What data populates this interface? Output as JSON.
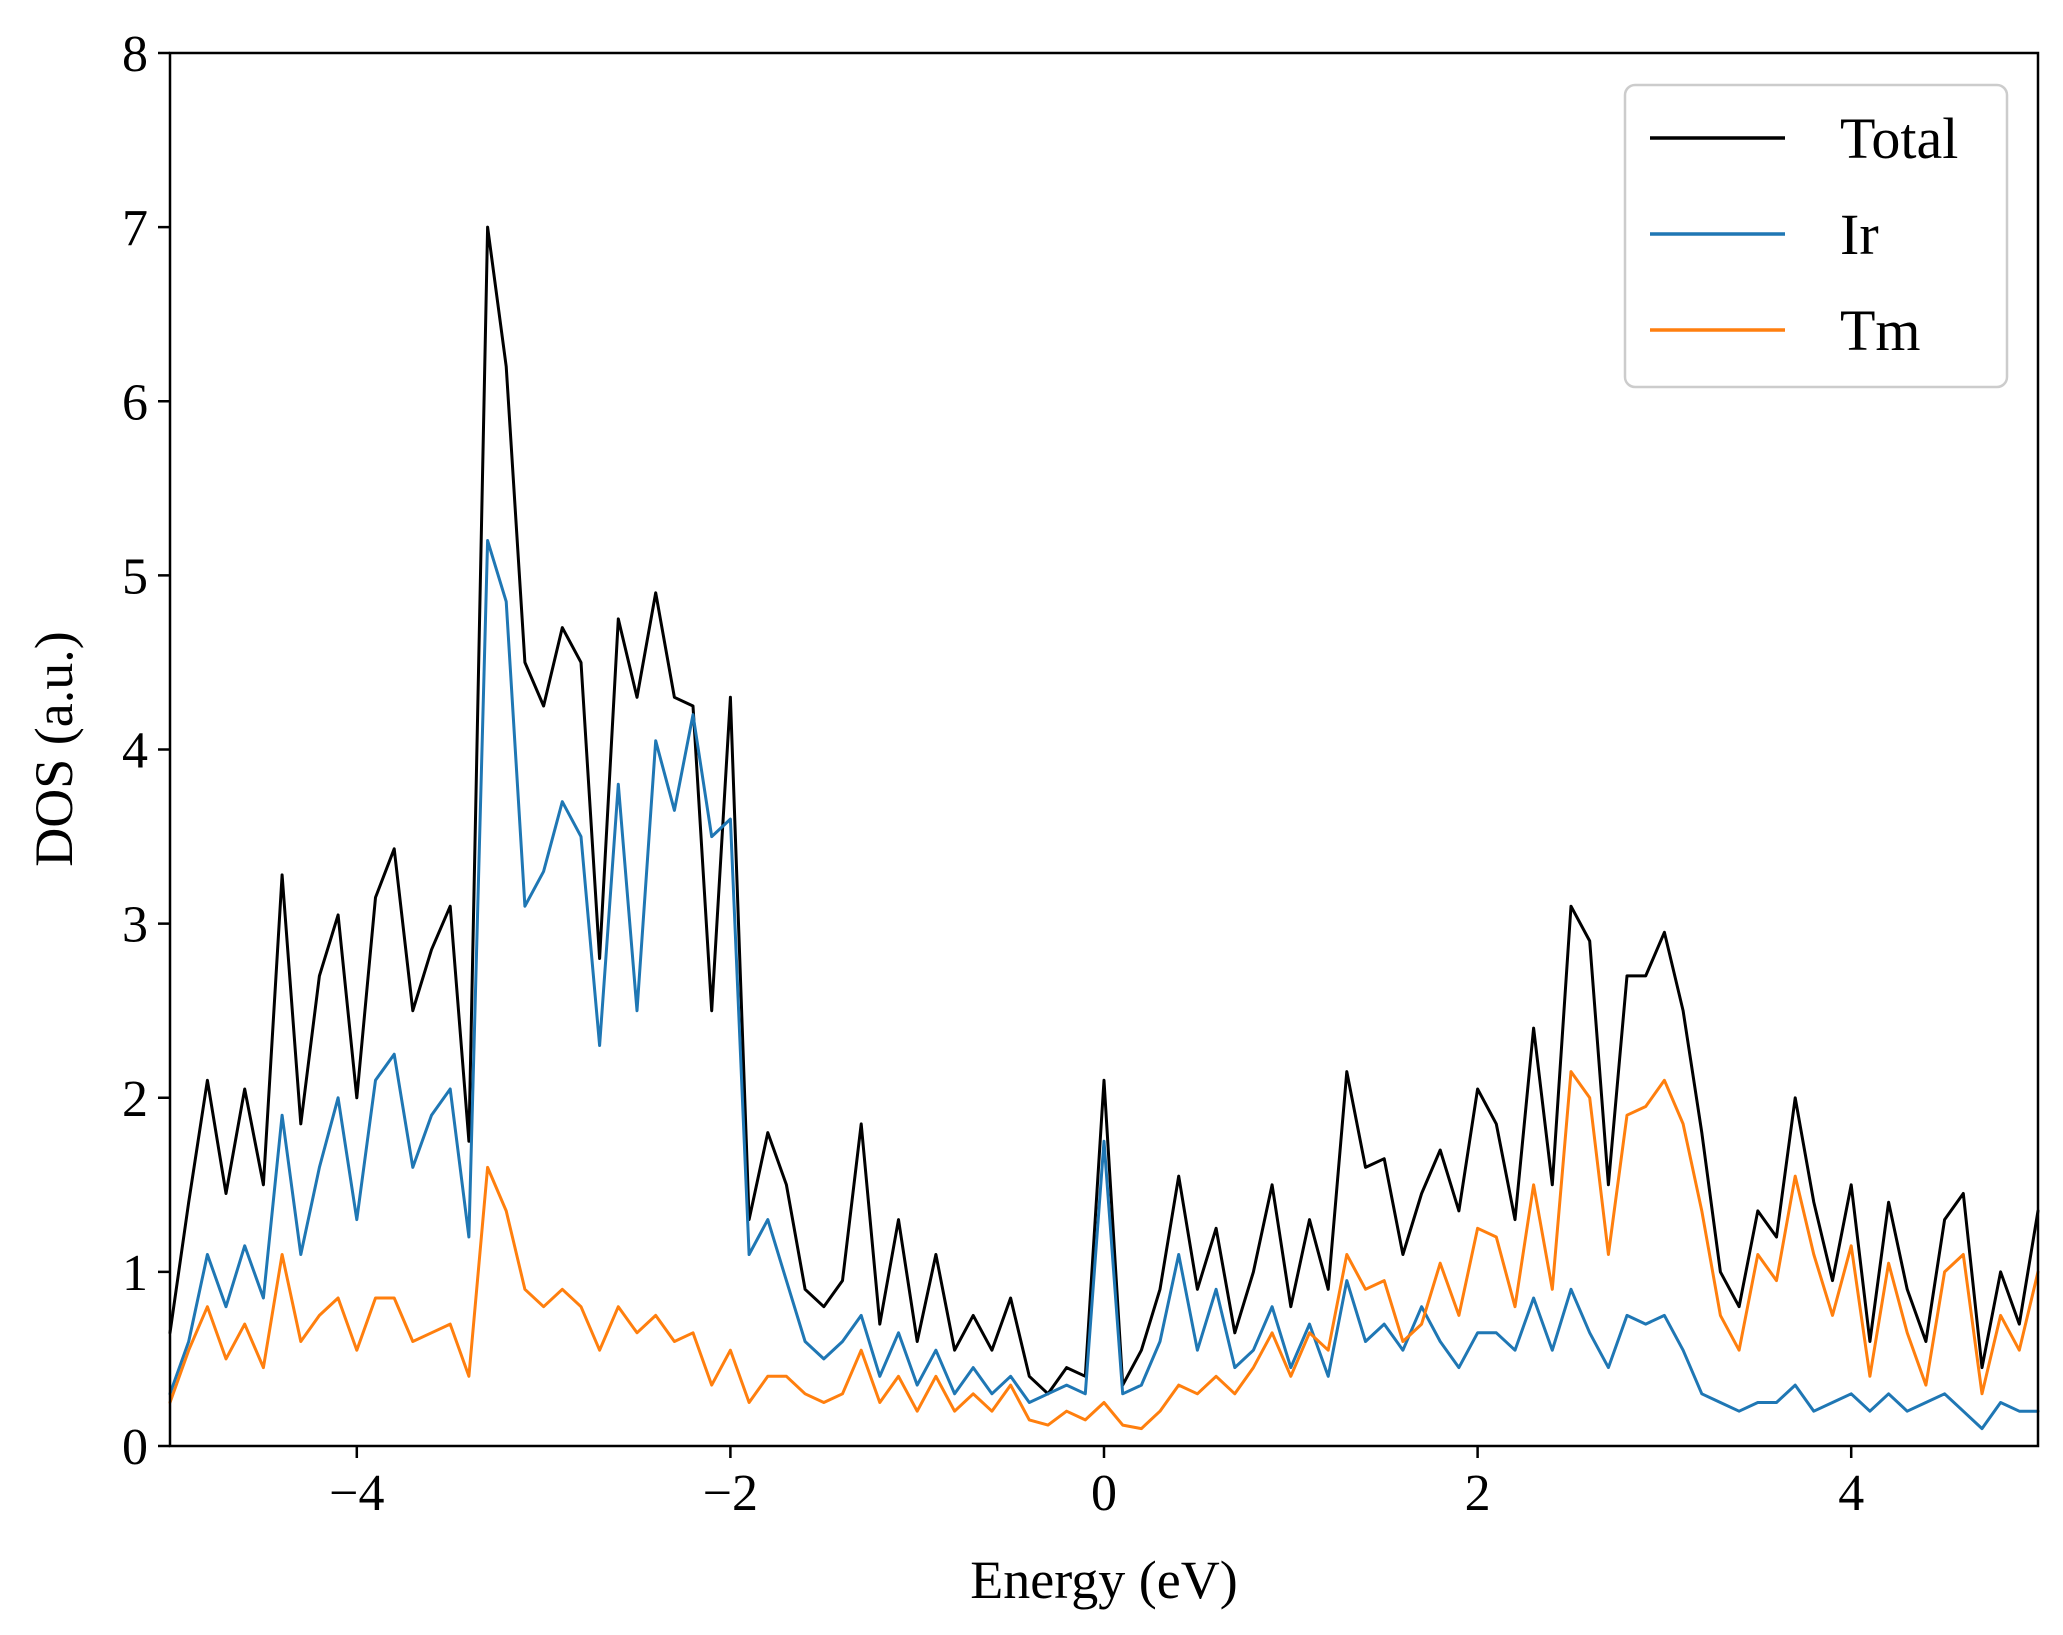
{
  "chart_data": {
    "type": "line",
    "title": "",
    "xlabel": "Energy (eV)",
    "ylabel": "DOS (a.u.)",
    "xlim": [
      -5,
      5
    ],
    "ylim": [
      0,
      8
    ],
    "xticks": [
      -4,
      -2,
      0,
      2,
      4
    ],
    "xtick_labels": [
      "−4",
      "−2",
      "0",
      "2",
      "4"
    ],
    "yticks": [
      0,
      1,
      2,
      3,
      4,
      5,
      6,
      7,
      8
    ],
    "ytick_labels": [
      "0",
      "1",
      "2",
      "3",
      "4",
      "5",
      "6",
      "7",
      "8"
    ],
    "grid": false,
    "legend_position": "top-right",
    "x": [
      -5.0,
      -4.9,
      -4.8,
      -4.7,
      -4.6,
      -4.5,
      -4.4,
      -4.3,
      -4.2,
      -4.1,
      -4.0,
      -3.9,
      -3.8,
      -3.7,
      -3.6,
      -3.5,
      -3.4,
      -3.3,
      -3.2,
      -3.1,
      -3.0,
      -2.9,
      -2.8,
      -2.7,
      -2.6,
      -2.5,
      -2.4,
      -2.3,
      -2.2,
      -2.1,
      -2.0,
      -1.9,
      -1.8,
      -1.7,
      -1.6,
      -1.5,
      -1.4,
      -1.3,
      -1.2,
      -1.1,
      -1.0,
      -0.9,
      -0.8,
      -0.7,
      -0.6,
      -0.5,
      -0.4,
      -0.3,
      -0.2,
      -0.1,
      0.0,
      0.1,
      0.2,
      0.3,
      0.4,
      0.5,
      0.6,
      0.7,
      0.8,
      0.9,
      1.0,
      1.1,
      1.2,
      1.3,
      1.4,
      1.5,
      1.6,
      1.7,
      1.8,
      1.9,
      2.0,
      2.1,
      2.2,
      2.3,
      2.4,
      2.5,
      2.6,
      2.7,
      2.8,
      2.9,
      3.0,
      3.1,
      3.2,
      3.3,
      3.4,
      3.5,
      3.6,
      3.7,
      3.8,
      3.9,
      4.0,
      4.1,
      4.2,
      4.3,
      4.4,
      4.5,
      4.6,
      4.7,
      4.8,
      4.9,
      5.0
    ],
    "series": [
      {
        "name": "Total",
        "color": "#000000",
        "values": [
          0.65,
          1.4,
          2.1,
          1.45,
          2.05,
          1.5,
          3.28,
          1.85,
          2.7,
          3.05,
          2.0,
          3.15,
          3.43,
          2.5,
          2.85,
          3.1,
          1.75,
          7.0,
          6.2,
          4.5,
          4.25,
          4.7,
          4.5,
          2.8,
          4.75,
          4.3,
          4.9,
          4.3,
          4.25,
          2.5,
          4.3,
          1.3,
          1.8,
          1.5,
          0.9,
          0.8,
          0.95,
          1.85,
          0.7,
          1.3,
          0.6,
          1.1,
          0.55,
          0.75,
          0.55,
          0.85,
          0.4,
          0.3,
          0.45,
          0.4,
          2.1,
          0.35,
          0.55,
          0.9,
          1.55,
          0.9,
          1.25,
          0.65,
          1.0,
          1.5,
          0.8,
          1.3,
          0.9,
          2.15,
          1.6,
          1.65,
          1.1,
          1.45,
          1.7,
          1.35,
          2.05,
          1.85,
          1.3,
          2.4,
          1.5,
          3.1,
          2.9,
          1.5,
          2.7,
          2.7,
          2.95,
          2.5,
          1.8,
          1.0,
          0.8,
          1.35,
          1.2,
          2.0,
          1.4,
          0.95,
          1.5,
          0.6,
          1.4,
          0.9,
          0.6,
          1.3,
          1.45,
          0.45,
          1.0,
          0.7,
          1.35
        ]
      },
      {
        "name": "Ir",
        "color": "#1f77b4",
        "values": [
          0.3,
          0.6,
          1.1,
          0.8,
          1.15,
          0.85,
          1.9,
          1.1,
          1.6,
          2.0,
          1.3,
          2.1,
          2.25,
          1.6,
          1.9,
          2.05,
          1.2,
          5.2,
          4.85,
          3.1,
          3.3,
          3.7,
          3.5,
          2.3,
          3.8,
          2.5,
          4.05,
          3.65,
          4.2,
          3.5,
          3.6,
          1.1,
          1.3,
          0.95,
          0.6,
          0.5,
          0.6,
          0.75,
          0.4,
          0.65,
          0.35,
          0.55,
          0.3,
          0.45,
          0.3,
          0.4,
          0.25,
          0.3,
          0.35,
          0.3,
          1.75,
          0.3,
          0.35,
          0.6,
          1.1,
          0.55,
          0.9,
          0.45,
          0.55,
          0.8,
          0.45,
          0.7,
          0.4,
          0.95,
          0.6,
          0.7,
          0.55,
          0.8,
          0.6,
          0.45,
          0.65,
          0.65,
          0.55,
          0.85,
          0.55,
          0.9,
          0.65,
          0.45,
          0.75,
          0.7,
          0.75,
          0.55,
          0.3,
          0.25,
          0.2,
          0.25,
          0.25,
          0.35,
          0.2,
          0.25,
          0.3,
          0.2,
          0.3,
          0.2,
          0.25,
          0.3,
          0.2,
          0.1,
          0.25,
          0.2,
          0.2
        ]
      },
      {
        "name": "Tm",
        "color": "#ff7f0e",
        "values": [
          0.25,
          0.55,
          0.8,
          0.5,
          0.7,
          0.45,
          1.1,
          0.6,
          0.75,
          0.85,
          0.55,
          0.85,
          0.85,
          0.6,
          0.65,
          0.7,
          0.4,
          1.6,
          1.35,
          0.9,
          0.8,
          0.9,
          0.8,
          0.55,
          0.8,
          0.65,
          0.75,
          0.6,
          0.65,
          0.35,
          0.55,
          0.25,
          0.4,
          0.4,
          0.3,
          0.25,
          0.3,
          0.55,
          0.25,
          0.4,
          0.2,
          0.4,
          0.2,
          0.3,
          0.2,
          0.35,
          0.15,
          0.12,
          0.2,
          0.15,
          0.25,
          0.12,
          0.1,
          0.2,
          0.35,
          0.3,
          0.4,
          0.3,
          0.45,
          0.65,
          0.4,
          0.65,
          0.55,
          1.1,
          0.9,
          0.95,
          0.6,
          0.7,
          1.05,
          0.75,
          1.25,
          1.2,
          0.8,
          1.5,
          0.9,
          2.15,
          2.0,
          1.1,
          1.9,
          1.95,
          2.1,
          1.85,
          1.35,
          0.75,
          0.55,
          1.1,
          0.95,
          1.55,
          1.1,
          0.75,
          1.15,
          0.4,
          1.05,
          0.65,
          0.35,
          1.0,
          1.1,
          0.3,
          0.75,
          0.55,
          1.0
        ]
      }
    ]
  }
}
